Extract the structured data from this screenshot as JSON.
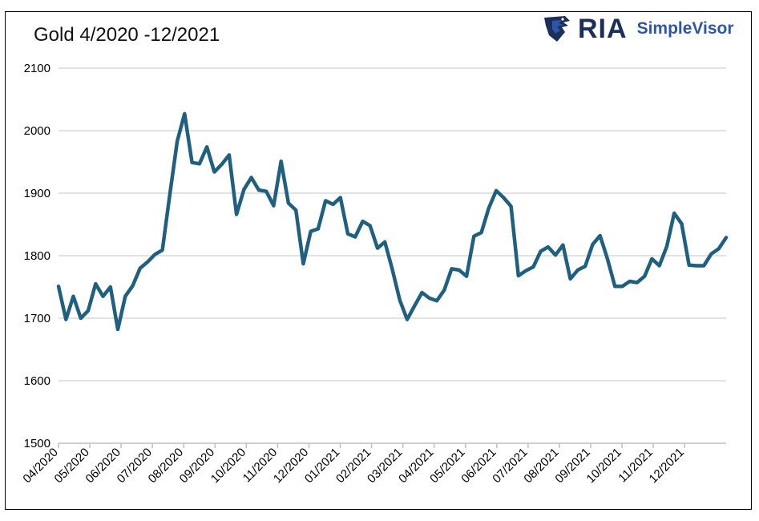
{
  "title": "Gold 4/2020 -12/2021",
  "logo": {
    "ria": "RIA",
    "simplevisor": "SimpleVisor",
    "icon": "eagle-shield-icon",
    "colors": {
      "dark": "#1c2f5a",
      "blue": "#2d56a8"
    }
  },
  "chart_data": {
    "type": "line",
    "title": "Gold 4/2020 -12/2021",
    "xlabel": "",
    "ylabel": "",
    "ylim": [
      1500,
      2100
    ],
    "yticks": [
      1500,
      1600,
      1700,
      1800,
      1900,
      2000,
      2100
    ],
    "xtick_labels": [
      "04/2020",
      "05/2020",
      "06/2020",
      "07/2020",
      "08/2020",
      "09/2020",
      "10/2020",
      "11/2020",
      "12/2020",
      "01/2021",
      "02/2021",
      "03/2021",
      "04/2021",
      "05/2021",
      "06/2021",
      "07/2021",
      "08/2021",
      "09/2021",
      "10/2021",
      "11/2021",
      "12/2021"
    ],
    "grid": true,
    "line_color": "#1f5f7f",
    "series": [
      {
        "values": [
          1751,
          1698,
          1735,
          1700,
          1712,
          1755,
          1735,
          1750,
          1682,
          1735,
          1752,
          1780,
          1790,
          1802,
          1809,
          1897,
          1983,
          2027,
          1949,
          1947,
          1974,
          1934,
          1946,
          1961,
          1866,
          1906,
          1925,
          1905,
          1903,
          1880,
          1951,
          1884,
          1873,
          1787,
          1839,
          1843,
          1888,
          1882,
          1893,
          1835,
          1830,
          1855,
          1848,
          1812,
          1822,
          1778,
          1729,
          1698,
          1720,
          1741,
          1732,
          1728,
          1745,
          1779,
          1777,
          1767,
          1831,
          1837,
          1876,
          1904,
          1893,
          1879,
          1768,
          1776,
          1782,
          1807,
          1814,
          1801,
          1817,
          1763,
          1777,
          1783,
          1818,
          1832,
          1795,
          1751,
          1751,
          1759,
          1757,
          1767,
          1795,
          1784,
          1815,
          1868,
          1851,
          1785,
          1784,
          1784,
          1803,
          1811,
          1829
        ]
      }
    ]
  }
}
